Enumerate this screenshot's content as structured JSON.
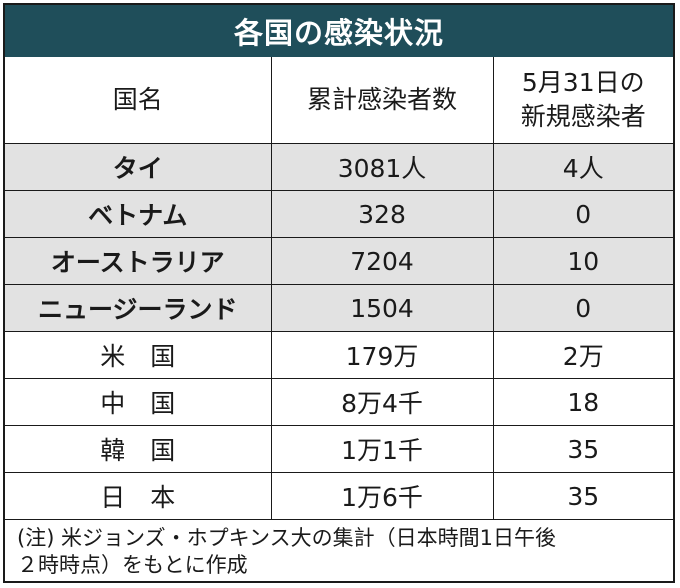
{
  "title": "各国の感染状況",
  "headers": {
    "name": "国名",
    "total": "累計感染者数",
    "new_line1": "5月31日の",
    "new_line2": "新規感染者"
  },
  "rows": [
    {
      "name": "タイ",
      "total": "3081人",
      "new": "4人",
      "shaded": true
    },
    {
      "name": "ベトナム",
      "total": "328",
      "new": "0",
      "shaded": true
    },
    {
      "name": "オーストラリア",
      "total": "7204",
      "new": "10",
      "shaded": true
    },
    {
      "name": "ニュージーランド",
      "total": "1504",
      "new": "0",
      "shaded": true
    },
    {
      "name": "米　国",
      "total": "179万",
      "new": "2万",
      "shaded": false
    },
    {
      "name": "中　国",
      "total": "8万4千",
      "new": "18",
      "shaded": false
    },
    {
      "name": "韓　国",
      "total": "1万1千",
      "new": "35",
      "shaded": false
    },
    {
      "name": "日　本",
      "total": "1万6千",
      "new": "35",
      "shaded": false
    }
  ],
  "note_line1": "(注) 米ジョンズ・ホプキンス大の集計（日本時間1日午後",
  "note_line2": "２時時点）をもとに作成",
  "colors": {
    "title_bg": "#1f4e5a",
    "shaded_row": "#e2e2e2"
  }
}
